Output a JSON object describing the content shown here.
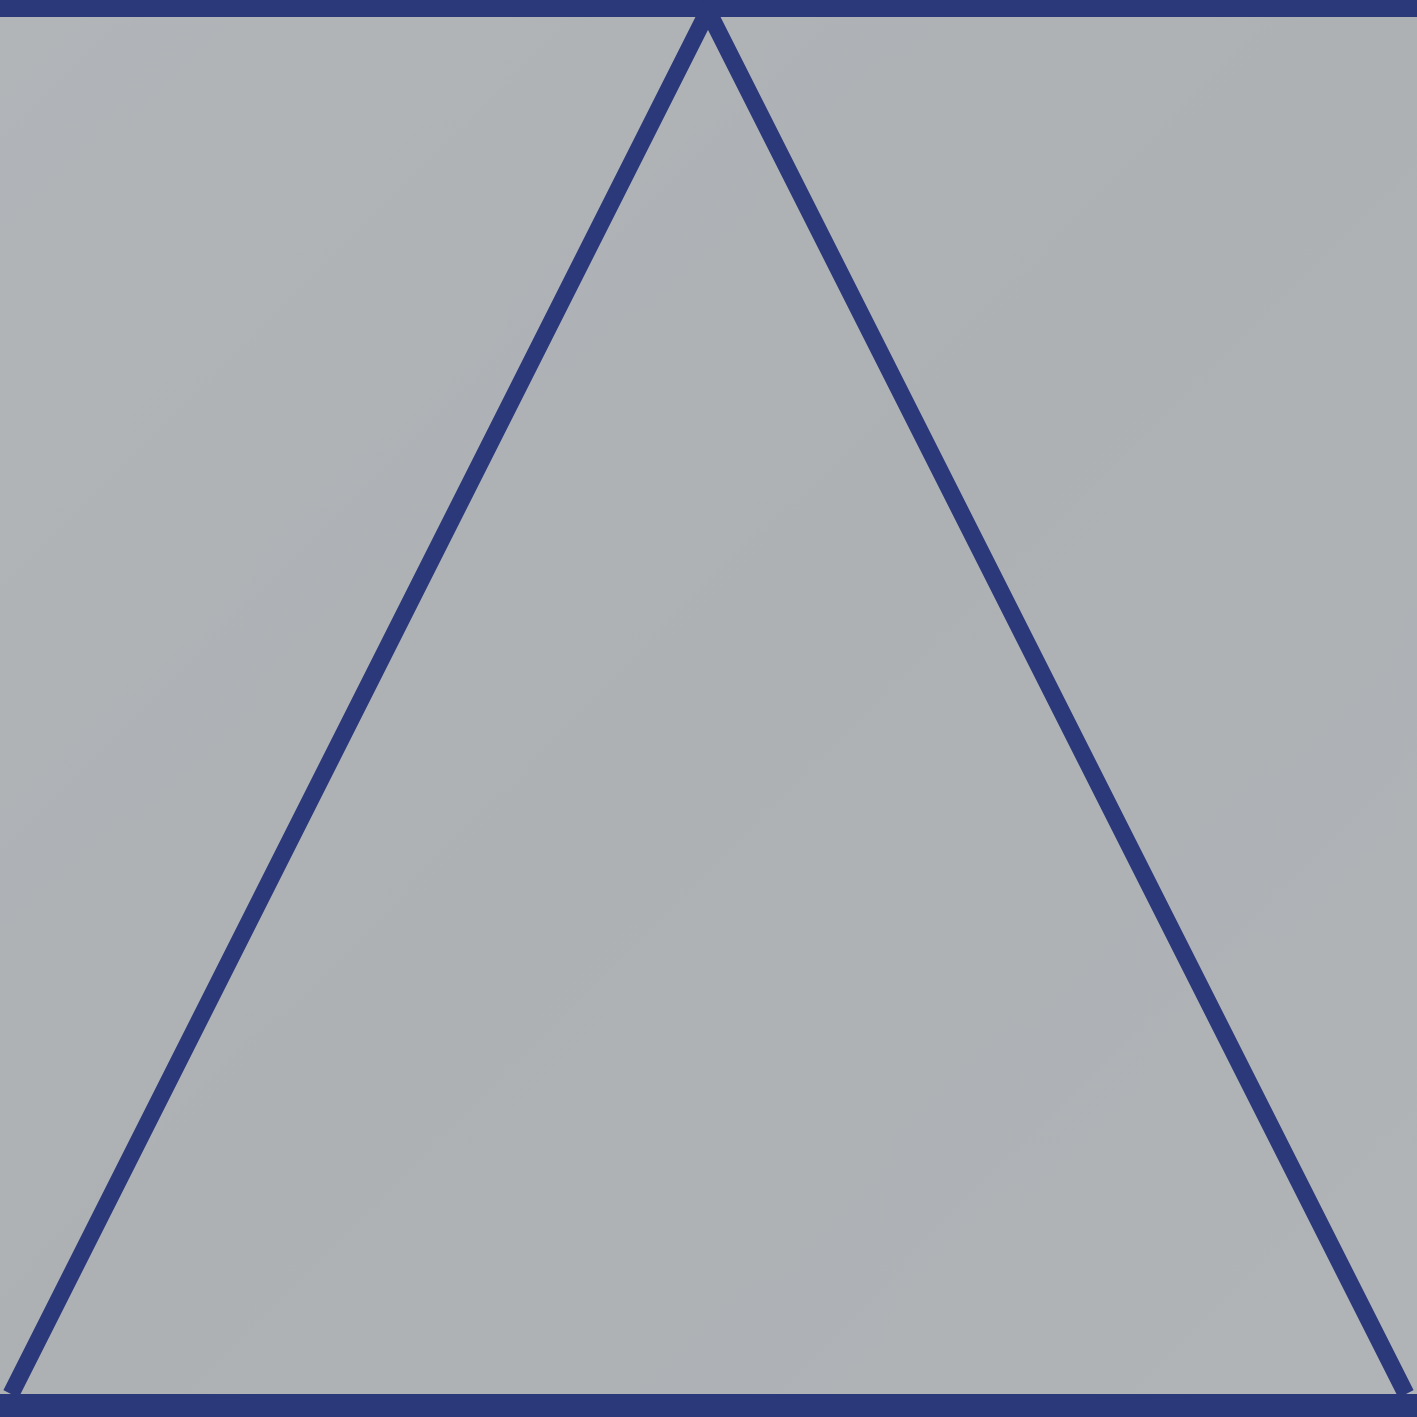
{
  "artwork": {
    "background_color": "#aeb2b5",
    "line_color": "#2b387a",
    "shapes": [
      "top-band",
      "bottom-band",
      "triangle-outline"
    ]
  }
}
